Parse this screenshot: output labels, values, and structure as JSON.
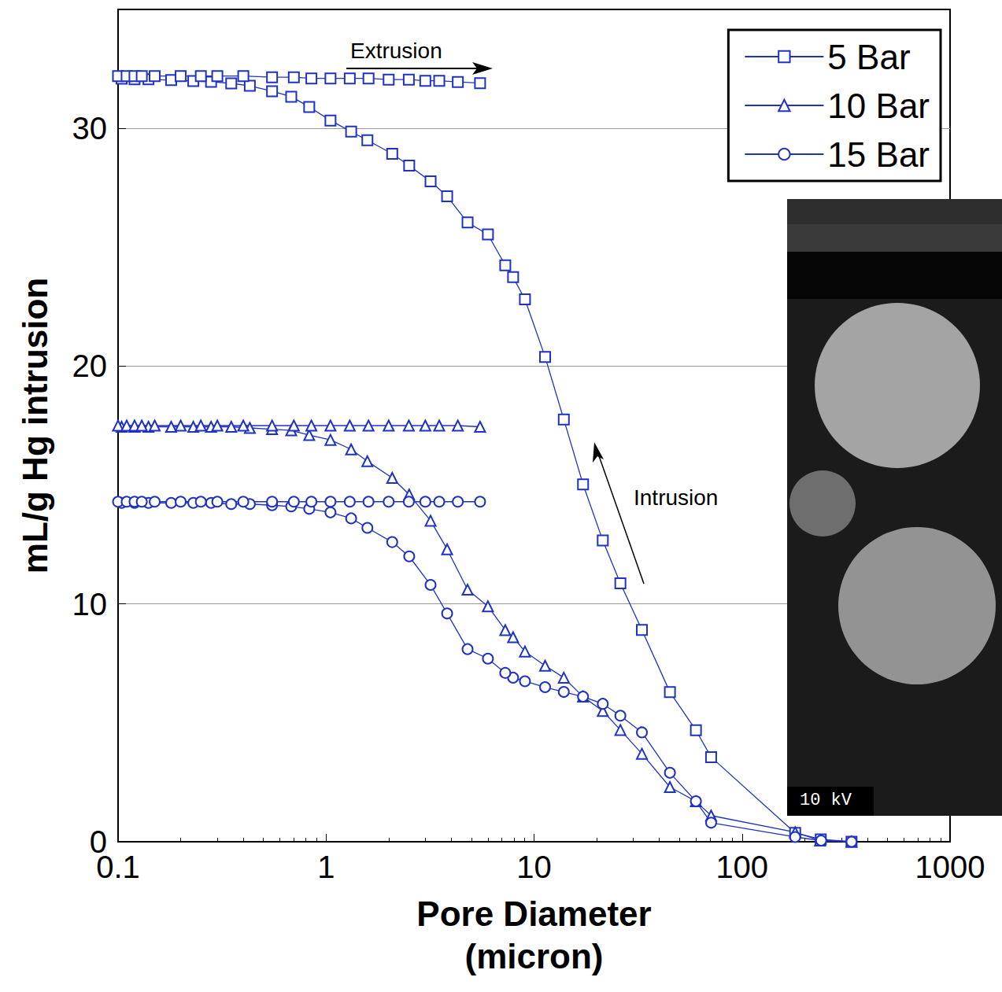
{
  "chart_data": {
    "type": "line",
    "x_label": "Pore Diameter\n(micron)",
    "y_label": "mL/g Hg intrusion",
    "log": "x",
    "grid": "y",
    "legend": "upper right",
    "xlim": [
      0.1,
      1000
    ],
    "xticks": [
      0.1,
      1,
      10,
      100,
      1000
    ],
    "ylim": [
      0,
      35
    ],
    "yticks": [
      0,
      10,
      20,
      30
    ],
    "annotations": [
      {
        "text": "Extrusion"
      },
      {
        "text": "Intrusion"
      }
    ],
    "inset": {
      "label": "10 kV"
    },
    "series": [
      {
        "name": "5 Bar",
        "color": "#1f33c2",
        "marker": "square",
        "intrusion": {
          "x": [
            336,
            239,
            180,
            71,
            60,
            45,
            33,
            26,
            21.4,
            17.2,
            13.9,
            11.3,
            9.04,
            7.93,
            7.27,
            6.0,
            4.79,
            3.82,
            3.18,
            2.51,
            2.08,
            1.58,
            1.32,
            1.05,
            0.83,
            0.68,
            0.55,
            0.43,
            0.35,
            0.28,
            0.23,
            0.18,
            0.14,
            0.12,
            0.104
          ],
          "values": [
            0,
            0.1,
            0.37,
            3.56,
            4.69,
            6.29,
            8.91,
            10.87,
            12.67,
            15.03,
            17.76,
            20.39,
            22.81,
            23.74,
            24.24,
            25.54,
            26.04,
            27.14,
            27.77,
            28.43,
            28.93,
            29.5,
            29.86,
            30.33,
            30.9,
            31.33,
            31.56,
            31.79,
            31.89,
            31.96,
            31.99,
            32.03,
            32.06,
            32.06,
            32.09
          ]
        },
        "extrusion": {
          "x": [
            0.1,
            0.11,
            0.12,
            0.13,
            0.15,
            0.2,
            0.25,
            0.3,
            0.4,
            0.55,
            0.7,
            0.85,
            1.05,
            1.3,
            1.6,
            2,
            2.5,
            3,
            3.5,
            4.3,
            5.5
          ],
          "values": [
            32.2,
            32.2,
            32.2,
            32.2,
            32.2,
            32.2,
            32.2,
            32.2,
            32.2,
            32.15,
            32.15,
            32.1,
            32.1,
            32.1,
            32.1,
            32.05,
            32.05,
            32.0,
            32.0,
            31.95,
            31.9
          ]
        }
      },
      {
        "name": "10 Bar",
        "color": "#1f33c2",
        "marker": "triangle",
        "intrusion": {
          "x": [
            336,
            237,
            180,
            71,
            60,
            45,
            33,
            26,
            21.4,
            17.2,
            13.9,
            11.3,
            9.04,
            7.93,
            7.27,
            6.0,
            4.79,
            3.82,
            3.18,
            2.51,
            2.08,
            1.58,
            1.32,
            1.05,
            0.83,
            0.68,
            0.55,
            0.43,
            0.35,
            0.28,
            0.23,
            0.18,
            0.14,
            0.12,
            0.104
          ],
          "values": [
            0,
            0.05,
            0.4,
            1.1,
            1.7,
            2.3,
            3.7,
            4.7,
            5.5,
            6.1,
            6.9,
            7.4,
            8.0,
            8.6,
            8.9,
            9.9,
            10.6,
            12.3,
            13.5,
            14.6,
            15.3,
            16.0,
            16.5,
            16.9,
            17.1,
            17.3,
            17.35,
            17.4,
            17.45,
            17.45,
            17.45,
            17.45,
            17.45,
            17.45,
            17.45
          ]
        },
        "extrusion": {
          "x": [
            0.1,
            0.11,
            0.12,
            0.13,
            0.15,
            0.2,
            0.25,
            0.3,
            0.4,
            0.55,
            0.7,
            0.85,
            1.05,
            1.3,
            1.6,
            2,
            2.5,
            3,
            3.5,
            4.3,
            5.5
          ],
          "values": [
            17.5,
            17.5,
            17.5,
            17.5,
            17.5,
            17.5,
            17.5,
            17.5,
            17.5,
            17.5,
            17.5,
            17.5,
            17.5,
            17.5,
            17.5,
            17.5,
            17.5,
            17.5,
            17.5,
            17.5,
            17.45
          ]
        }
      },
      {
        "name": "15 Bar",
        "color": "#1f33c2",
        "marker": "circle",
        "intrusion": {
          "x": [
            336,
            240,
            180,
            71,
            60,
            45,
            33,
            26,
            21.4,
            17.2,
            13.9,
            11.3,
            9.04,
            7.93,
            7.27,
            6.0,
            4.79,
            3.82,
            3.18,
            2.51,
            2.08,
            1.58,
            1.32,
            1.05,
            0.83,
            0.68,
            0.55,
            0.43,
            0.35,
            0.28,
            0.23,
            0.18,
            0.14,
            0.12,
            0.104
          ],
          "values": [
            0,
            0.05,
            0.2,
            0.8,
            1.7,
            2.9,
            4.6,
            5.3,
            5.8,
            6.1,
            6.3,
            6.5,
            6.75,
            6.9,
            7.1,
            7.7,
            8.1,
            9.6,
            10.8,
            12.0,
            12.6,
            13.2,
            13.6,
            13.85,
            14.0,
            14.1,
            14.15,
            14.2,
            14.2,
            14.25,
            14.25,
            14.25,
            14.25,
            14.25,
            14.25
          ]
        },
        "extrusion": {
          "x": [
            0.1,
            0.11,
            0.12,
            0.13,
            0.15,
            0.2,
            0.25,
            0.3,
            0.4,
            0.55,
            0.7,
            0.85,
            1.05,
            1.3,
            1.6,
            2,
            2.5,
            3,
            3.5,
            4.3,
            5.5
          ],
          "values": [
            14.3,
            14.3,
            14.3,
            14.3,
            14.3,
            14.3,
            14.3,
            14.3,
            14.3,
            14.3,
            14.3,
            14.3,
            14.3,
            14.3,
            14.3,
            14.3,
            14.3,
            14.3,
            14.3,
            14.3,
            14.3
          ]
        }
      }
    ]
  }
}
